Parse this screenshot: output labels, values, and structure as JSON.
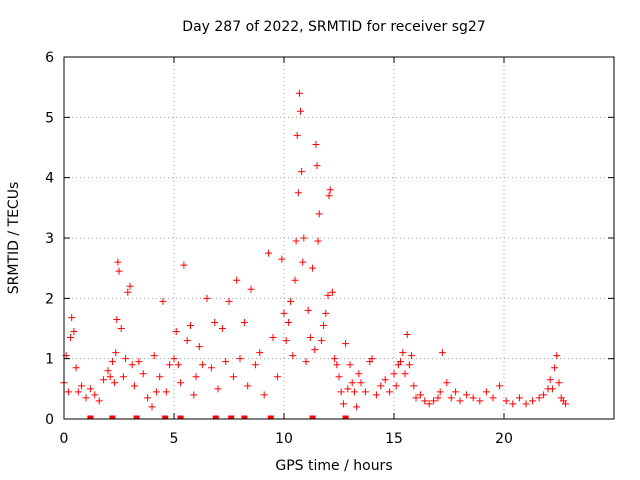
{
  "chart_data": {
    "type": "scatter",
    "title": "Day 287 of 2022, SRMTID for receiver sg27",
    "xlabel": "GPS time / hours",
    "ylabel": "SRMTID / TECUs",
    "xlim": [
      0,
      25
    ],
    "ylim": [
      0,
      6
    ],
    "xticks": [
      "0",
      "5",
      "10",
      "15",
      "20"
    ],
    "xtick_values": [
      0,
      5,
      10,
      15,
      20
    ],
    "yticks": [
      "0",
      "1",
      "2",
      "3",
      "4",
      "5",
      "6"
    ],
    "ytick_values": [
      0,
      1,
      2,
      3,
      4,
      5,
      6
    ],
    "grid": true,
    "marker": "+",
    "marker_color": "#ff0000",
    "axis_color": "#000000",
    "grid_color": "#a0a0a0",
    "series": [
      {
        "name": "SRMTID",
        "x": [
          0.0,
          0.1,
          0.2,
          0.3,
          0.35,
          0.45,
          0.55,
          0.65,
          0.8,
          1.0,
          1.2,
          1.4,
          1.6,
          1.8,
          2.0,
          2.1,
          2.2,
          2.3,
          2.35,
          2.4,
          2.45,
          2.5,
          2.6,
          2.7,
          2.8,
          2.9,
          3.0,
          3.1,
          3.2,
          3.4,
          3.6,
          3.8,
          4.0,
          4.1,
          4.2,
          4.35,
          4.5,
          4.65,
          4.8,
          5.0,
          5.1,
          5.2,
          5.3,
          5.45,
          5.6,
          5.75,
          5.9,
          6.0,
          6.15,
          6.3,
          6.5,
          6.7,
          6.85,
          7.0,
          7.2,
          7.35,
          7.5,
          7.7,
          7.85,
          8.0,
          8.2,
          8.35,
          8.5,
          8.7,
          8.9,
          9.1,
          9.3,
          9.5,
          9.7,
          9.9,
          10.0,
          10.1,
          10.2,
          10.3,
          10.4,
          10.5,
          10.55,
          10.6,
          10.65,
          10.7,
          10.75,
          10.8,
          10.85,
          10.9,
          11.0,
          11.1,
          11.2,
          11.3,
          11.4,
          11.45,
          11.5,
          11.55,
          11.6,
          11.7,
          11.8,
          11.9,
          12.0,
          12.05,
          12.1,
          12.2,
          12.3,
          12.4,
          12.5,
          12.6,
          12.7,
          12.8,
          12.9,
          13.0,
          13.1,
          13.2,
          13.3,
          13.4,
          13.5,
          13.7,
          13.9,
          14.0,
          14.2,
          14.4,
          14.6,
          14.8,
          15.0,
          15.1,
          15.2,
          15.3,
          15.4,
          15.5,
          15.6,
          15.7,
          15.8,
          15.9,
          16.0,
          16.2,
          16.4,
          16.6,
          16.8,
          17.0,
          17.1,
          17.2,
          17.4,
          17.6,
          17.8,
          18.0,
          18.3,
          18.6,
          18.9,
          19.2,
          19.5,
          19.8,
          20.1,
          20.4,
          20.7,
          21.0,
          21.3,
          21.6,
          21.8,
          22.0,
          22.1,
          22.2,
          22.3,
          22.4,
          22.5,
          22.6,
          22.7,
          22.8
        ],
        "y": [
          0.6,
          1.05,
          0.45,
          1.35,
          1.68,
          1.45,
          0.85,
          0.45,
          0.55,
          0.35,
          0.5,
          0.4,
          0.3,
          0.65,
          0.8,
          0.7,
          0.95,
          0.6,
          1.1,
          1.65,
          2.6,
          2.45,
          1.5,
          0.7,
          1.0,
          2.1,
          2.2,
          0.9,
          0.55,
          0.95,
          0.75,
          0.35,
          0.2,
          1.05,
          0.45,
          0.7,
          1.95,
          0.45,
          0.9,
          1.0,
          1.45,
          0.9,
          0.6,
          2.55,
          1.3,
          1.55,
          0.4,
          0.7,
          1.2,
          0.9,
          2.0,
          0.85,
          1.6,
          0.5,
          1.5,
          0.95,
          1.95,
          0.7,
          2.3,
          1.0,
          1.6,
          0.55,
          2.15,
          0.9,
          1.1,
          0.4,
          2.75,
          1.35,
          0.7,
          2.65,
          1.75,
          1.3,
          1.6,
          1.95,
          1.05,
          2.3,
          2.95,
          4.7,
          3.75,
          5.4,
          5.1,
          4.1,
          2.6,
          3.0,
          0.95,
          1.8,
          1.35,
          2.5,
          1.15,
          4.55,
          4.2,
          2.95,
          3.4,
          1.3,
          1.55,
          1.75,
          2.05,
          3.7,
          3.8,
          2.1,
          1.0,
          0.9,
          0.7,
          0.45,
          0.25,
          1.25,
          0.5,
          0.9,
          0.6,
          0.45,
          0.2,
          0.75,
          0.6,
          0.45,
          0.95,
          1.0,
          0.4,
          0.55,
          0.65,
          0.45,
          0.75,
          0.55,
          0.9,
          0.95,
          1.1,
          0.75,
          1.4,
          0.9,
          1.05,
          0.55,
          0.35,
          0.4,
          0.3,
          0.25,
          0.3,
          0.35,
          0.45,
          1.1,
          0.6,
          0.35,
          0.45,
          0.3,
          0.4,
          0.35,
          0.3,
          0.45,
          0.35,
          0.55,
          0.3,
          0.25,
          0.35,
          0.25,
          0.3,
          0.35,
          0.4,
          0.5,
          0.65,
          0.5,
          0.85,
          1.05,
          0.6,
          0.35,
          0.3,
          0.25
        ]
      }
    ],
    "zero_markers_x": [
      1.2,
      2.2,
      3.3,
      4.6,
      5.3,
      6.9,
      7.6,
      8.2,
      9.4,
      11.3,
      12.8
    ]
  }
}
